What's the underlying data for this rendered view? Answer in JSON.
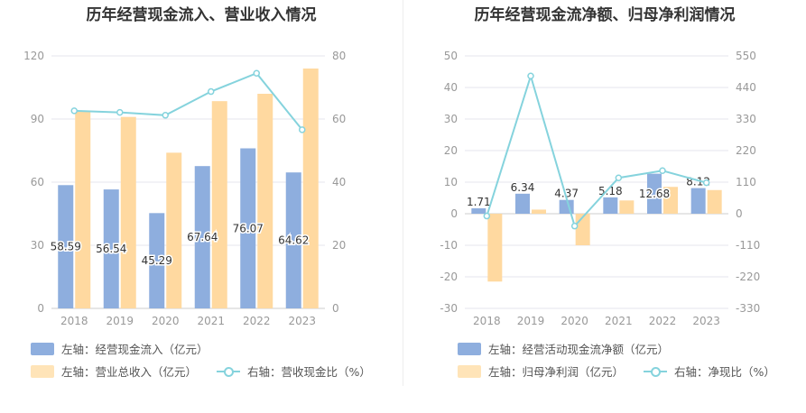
{
  "colors": {
    "bar_primary": "#8eaede",
    "bar_secondary": "#ffd9a0",
    "line": "#85d3dd",
    "grid": "#e6e6ee",
    "axis_text": "#999999"
  },
  "left": {
    "title": "历年经营现金流入、营业收入情况",
    "legend": {
      "bar1": "左轴：经营现金流入（亿元）",
      "bar2": "左轴：营业总收入（亿元）",
      "line": "右轴：营收现金比（%）"
    }
  },
  "right": {
    "title": "历年经营现金流净额、归母净利润情况",
    "legend": {
      "bar1": "左轴：经营活动现金流净额（亿元）",
      "bar2": "左轴：归母净利润（亿元）",
      "line": "右轴：净现比（%）"
    }
  },
  "chart_data": [
    {
      "type": "bar",
      "title": "历年经营现金流入、营业收入情况",
      "categories": [
        "2018",
        "2019",
        "2020",
        "2021",
        "2022",
        "2023"
      ],
      "left_axis": {
        "ylim": [
          0,
          120
        ],
        "ticks": [
          "0",
          "30",
          "60",
          "90",
          "120"
        ]
      },
      "right_axis": {
        "ylim": [
          0,
          80
        ],
        "ticks": [
          "0",
          "20",
          "40",
          "60",
          "80"
        ]
      },
      "series": [
        {
          "name": "左轴：经营现金流入（亿元）",
          "axis": "left",
          "values": [
            58.59,
            56.54,
            45.29,
            67.64,
            76.07,
            64.62
          ],
          "labels": [
            "58.59",
            "56.54",
            "45.29",
            "67.64",
            "76.07",
            "64.62"
          ]
        },
        {
          "name": "左轴：营业总收入（亿元）",
          "axis": "left",
          "values": [
            93.5,
            91,
            74,
            98.5,
            102,
            114
          ]
        },
        {
          "name": "右轴：营收现金比（%）",
          "axis": "right",
          "type": "line",
          "values": [
            62.6,
            62.1,
            61.2,
            68.7,
            74.5,
            56.6
          ]
        }
      ],
      "grid": true,
      "legend_position": "bottom"
    },
    {
      "type": "bar",
      "title": "历年经营现金流净额、归母净利润情况",
      "categories": [
        "2018",
        "2019",
        "2020",
        "2021",
        "2022",
        "2023"
      ],
      "left_axis": {
        "ylim": [
          -30,
          50
        ],
        "ticks": [
          "-30",
          "-20",
          "-10",
          "0",
          "10",
          "20",
          "30",
          "40",
          "50"
        ]
      },
      "right_axis": {
        "ylim": [
          -330,
          550
        ],
        "ticks": [
          "-330",
          "-220",
          "-110",
          "0",
          "110",
          "220",
          "330",
          "440",
          "550"
        ]
      },
      "series": [
        {
          "name": "左轴：经营活动现金流净额（亿元）",
          "axis": "left",
          "values": [
            1.71,
            6.34,
            4.37,
            5.18,
            12.68,
            8.12
          ],
          "labels": [
            "1.71",
            "6.34",
            "4.37",
            "5.18",
            "12.68",
            "8.12"
          ]
        },
        {
          "name": "左轴：归母净利润（亿元）",
          "axis": "left",
          "values": [
            -21.5,
            1.3,
            -10,
            4.2,
            8.5,
            7.5
          ]
        },
        {
          "name": "右轴：净现比（%）",
          "axis": "right",
          "type": "line",
          "values": [
            -8,
            480,
            -43,
            125,
            150,
            108
          ]
        }
      ],
      "grid": true,
      "legend_position": "bottom"
    }
  ]
}
